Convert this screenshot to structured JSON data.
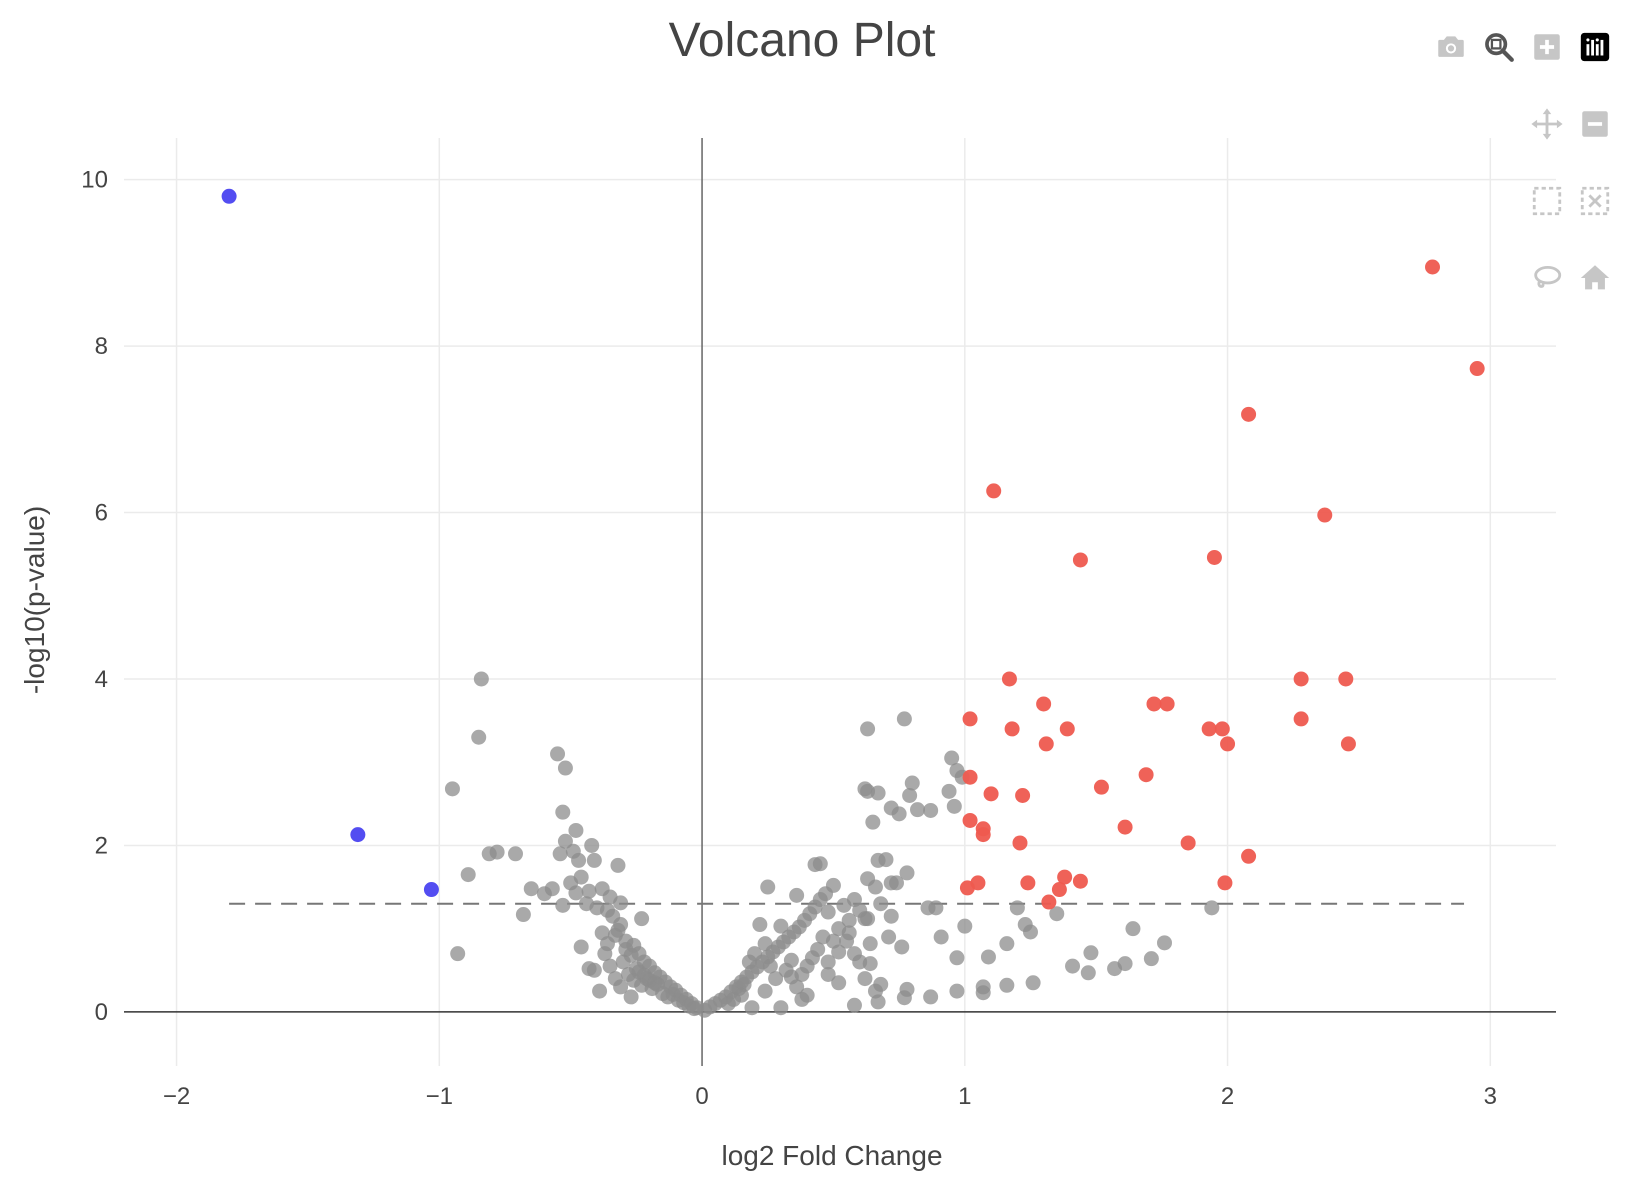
{
  "colors": {
    "up": "#ee5a4f",
    "down": "#4a43f0",
    "ns": "#8c8c8c",
    "grid": "#ebebeb",
    "text": "#444444",
    "modebar_icon": "#c6c6c6",
    "logo_bg": "#000000"
  },
  "modebar": {
    "buttons": [
      {
        "name": "download-plot-as-png",
        "icon": "camera-icon"
      },
      {
        "name": "zoom",
        "icon": "zoom-icon"
      },
      {
        "name": "zoom-in",
        "icon": "zoom-in-icon"
      },
      {
        "name": "plotly-logo",
        "icon": "plotly-logo-icon"
      },
      {
        "name": "pan",
        "icon": "pan-icon"
      },
      {
        "name": "zoom-out",
        "icon": "zoom-out-icon"
      },
      {
        "name": "box-select",
        "icon": "box-select-icon"
      },
      {
        "name": "autoscale",
        "icon": "autoscale-icon"
      },
      {
        "name": "lasso-select",
        "icon": "lasso-icon"
      },
      {
        "name": "reset-axes",
        "icon": "home-icon"
      }
    ]
  },
  "chart_data": {
    "type": "scatter",
    "title": "Volcano Plot",
    "xlabel": "log2 Fold Change",
    "ylabel": "-log10(p-value)",
    "xlim": [
      -2.2,
      3.25
    ],
    "ylim": [
      -0.65,
      10.5
    ],
    "x_ticks": [
      -2,
      -1,
      0,
      1,
      2,
      3
    ],
    "x_tick_labels": [
      "−2",
      "−1",
      "0",
      "1",
      "2",
      "3"
    ],
    "y_ticks": [
      0,
      2,
      4,
      6,
      8,
      10
    ],
    "y_tick_labels": [
      "0",
      "2",
      "4",
      "6",
      "8",
      "10"
    ],
    "grid": true,
    "legend": "none",
    "threshold_line": {
      "y": 1.3,
      "x_range": [
        -1.8,
        2.9
      ],
      "style": "dashed"
    },
    "series": [
      {
        "color": "#4a43f0",
        "points": [
          [
            -1.8,
            9.8
          ],
          [
            -1.31,
            2.13
          ],
          [
            -1.03,
            1.47
          ]
        ]
      },
      {
        "color": "#ee5a4f",
        "points": [
          [
            2.78,
            8.95
          ],
          [
            2.95,
            7.73
          ],
          [
            2.08,
            7.18
          ],
          [
            1.11,
            6.26
          ],
          [
            2.37,
            5.97
          ],
          [
            1.44,
            5.43
          ],
          [
            1.95,
            5.46
          ],
          [
            1.17,
            4.0
          ],
          [
            2.28,
            4.0
          ],
          [
            2.45,
            4.0
          ],
          [
            1.02,
            3.52
          ],
          [
            1.3,
            3.7
          ],
          [
            1.72,
            3.7
          ],
          [
            1.77,
            3.7
          ],
          [
            1.18,
            3.4
          ],
          [
            1.39,
            3.4
          ],
          [
            1.93,
            3.4
          ],
          [
            1.98,
            3.4
          ],
          [
            2.28,
            3.52
          ],
          [
            1.31,
            3.22
          ],
          [
            2.0,
            3.22
          ],
          [
            2.46,
            3.22
          ],
          [
            1.02,
            2.82
          ],
          [
            1.69,
            2.85
          ],
          [
            1.52,
            2.7
          ],
          [
            1.1,
            2.62
          ],
          [
            1.22,
            2.6
          ],
          [
            1.02,
            2.3
          ],
          [
            1.07,
            2.2
          ],
          [
            1.07,
            2.13
          ],
          [
            1.61,
            2.22
          ],
          [
            1.21,
            2.03
          ],
          [
            1.85,
            2.03
          ],
          [
            2.08,
            1.87
          ],
          [
            1.05,
            1.55
          ],
          [
            1.01,
            1.49
          ],
          [
            1.24,
            1.55
          ],
          [
            1.38,
            1.62
          ],
          [
            1.44,
            1.57
          ],
          [
            1.36,
            1.47
          ],
          [
            1.32,
            1.32
          ],
          [
            1.99,
            1.55
          ]
        ]
      },
      {
        "color": "#8c8c8c",
        "points": [
          [
            -0.84,
            4.0
          ],
          [
            -0.85,
            3.3
          ],
          [
            -0.95,
            2.68
          ],
          [
            -0.89,
            1.65
          ],
          [
            -0.93,
            0.7
          ],
          [
            -0.81,
            1.9
          ],
          [
            -0.78,
            1.92
          ],
          [
            -0.71,
            1.9
          ],
          [
            -0.65,
            1.48
          ],
          [
            -0.6,
            1.42
          ],
          [
            -0.57,
            1.48
          ],
          [
            -0.68,
            1.17
          ],
          [
            -0.55,
            3.1
          ],
          [
            -0.52,
            2.93
          ],
          [
            -0.53,
            2.4
          ],
          [
            -0.48,
            2.18
          ],
          [
            -0.52,
            2.05
          ],
          [
            -0.42,
            2.0
          ],
          [
            -0.49,
            1.93
          ],
          [
            -0.54,
            1.9
          ],
          [
            -0.47,
            1.82
          ],
          [
            -0.41,
            1.82
          ],
          [
            -0.32,
            1.76
          ],
          [
            -0.5,
            1.55
          ],
          [
            -0.46,
            1.62
          ],
          [
            -0.43,
            1.45
          ],
          [
            -0.38,
            1.48
          ],
          [
            -0.35,
            1.38
          ],
          [
            -0.48,
            1.43
          ],
          [
            -0.53,
            1.28
          ],
          [
            -0.44,
            1.3
          ],
          [
            -0.4,
            1.25
          ],
          [
            -0.36,
            1.22
          ],
          [
            -0.31,
            1.31
          ],
          [
            -0.23,
            1.12
          ],
          [
            -0.46,
            0.78
          ],
          [
            -0.43,
            0.52
          ],
          [
            -0.41,
            0.5
          ],
          [
            -0.37,
            0.7
          ],
          [
            -0.35,
            0.55
          ],
          [
            -0.39,
            0.25
          ],
          [
            -0.27,
            0.18
          ],
          [
            -0.31,
            1.05
          ],
          [
            -0.33,
            0.92
          ],
          [
            -0.29,
            0.85
          ],
          [
            -0.26,
            0.8
          ],
          [
            -0.24,
            0.7
          ],
          [
            -0.22,
            0.6
          ],
          [
            -0.2,
            0.55
          ],
          [
            -0.18,
            0.47
          ],
          [
            -0.16,
            0.42
          ],
          [
            -0.14,
            0.36
          ],
          [
            -0.12,
            0.3
          ],
          [
            -0.1,
            0.26
          ],
          [
            -0.08,
            0.2
          ],
          [
            -0.06,
            0.15
          ],
          [
            -0.04,
            0.1
          ],
          [
            -0.02,
            0.05
          ],
          [
            -0.3,
            0.6
          ],
          [
            -0.28,
            0.45
          ],
          [
            -0.26,
            0.38
          ],
          [
            -0.25,
            0.52
          ],
          [
            -0.23,
            0.32
          ],
          [
            -0.21,
            0.4
          ],
          [
            -0.19,
            0.28
          ],
          [
            -0.17,
            0.33
          ],
          [
            -0.15,
            0.22
          ],
          [
            -0.13,
            0.18
          ],
          [
            -0.11,
            0.21
          ],
          [
            -0.09,
            0.14
          ],
          [
            -0.07,
            0.11
          ],
          [
            -0.05,
            0.07
          ],
          [
            -0.03,
            0.04
          ],
          [
            -0.32,
            0.98
          ],
          [
            -0.34,
            1.15
          ],
          [
            -0.36,
            0.82
          ],
          [
            -0.38,
            0.95
          ],
          [
            -0.27,
            0.68
          ],
          [
            -0.29,
            0.75
          ],
          [
            -0.24,
            0.48
          ],
          [
            -0.22,
            0.44
          ],
          [
            -0.2,
            0.38
          ],
          [
            -0.18,
            0.35
          ],
          [
            -0.33,
            0.4
          ],
          [
            -0.31,
            0.3
          ],
          [
            0.01,
            0.02
          ],
          [
            0.03,
            0.06
          ],
          [
            0.05,
            0.1
          ],
          [
            0.07,
            0.14
          ],
          [
            0.09,
            0.18
          ],
          [
            0.11,
            0.24
          ],
          [
            0.13,
            0.3
          ],
          [
            0.15,
            0.36
          ],
          [
            0.17,
            0.42
          ],
          [
            0.19,
            0.48
          ],
          [
            0.21,
            0.54
          ],
          [
            0.23,
            0.6
          ],
          [
            0.25,
            0.66
          ],
          [
            0.27,
            0.72
          ],
          [
            0.29,
            0.78
          ],
          [
            0.31,
            0.84
          ],
          [
            0.33,
            0.9
          ],
          [
            0.35,
            0.96
          ],
          [
            0.37,
            1.02
          ],
          [
            0.39,
            1.1
          ],
          [
            0.41,
            1.18
          ],
          [
            0.43,
            1.26
          ],
          [
            0.45,
            1.35
          ],
          [
            0.47,
            1.42
          ],
          [
            0.45,
            1.78
          ],
          [
            0.43,
            1.77
          ],
          [
            0.5,
            1.52
          ],
          [
            0.36,
            1.4
          ],
          [
            0.25,
            1.5
          ],
          [
            0.3,
            1.03
          ],
          [
            0.22,
            1.05
          ],
          [
            0.18,
            0.6
          ],
          [
            0.2,
            0.7
          ],
          [
            0.24,
            0.82
          ],
          [
            0.26,
            0.55
          ],
          [
            0.28,
            0.4
          ],
          [
            0.32,
            0.5
          ],
          [
            0.34,
            0.62
          ],
          [
            0.36,
            0.3
          ],
          [
            0.38,
            0.45
          ],
          [
            0.4,
            0.55
          ],
          [
            0.42,
            0.65
          ],
          [
            0.44,
            0.75
          ],
          [
            0.46,
            0.9
          ],
          [
            0.48,
            0.6
          ],
          [
            0.5,
            0.85
          ],
          [
            0.52,
            0.72
          ],
          [
            0.54,
            1.28
          ],
          [
            0.56,
            1.1
          ],
          [
            0.58,
            1.35
          ],
          [
            0.6,
            1.22
          ],
          [
            0.62,
            1.12
          ],
          [
            0.64,
            0.82
          ],
          [
            0.66,
            1.5
          ],
          [
            0.6,
            0.6
          ],
          [
            0.62,
            0.4
          ],
          [
            0.58,
            0.7
          ],
          [
            0.55,
            0.85
          ],
          [
            0.63,
            3.4
          ],
          [
            0.77,
            3.52
          ],
          [
            0.62,
            2.68
          ],
          [
            0.63,
            2.65
          ],
          [
            0.67,
            2.63
          ],
          [
            0.8,
            2.75
          ],
          [
            0.79,
            2.6
          ],
          [
            0.72,
            2.45
          ],
          [
            0.75,
            2.38
          ],
          [
            0.82,
            2.43
          ],
          [
            0.87,
            2.42
          ],
          [
            0.65,
            2.28
          ],
          [
            0.63,
            1.6
          ],
          [
            0.67,
            1.82
          ],
          [
            0.7,
            1.83
          ],
          [
            0.72,
            1.55
          ],
          [
            0.74,
            1.55
          ],
          [
            0.78,
            1.67
          ],
          [
            0.68,
            1.3
          ],
          [
            0.72,
            1.15
          ],
          [
            0.86,
            1.25
          ],
          [
            0.89,
            1.25
          ],
          [
            0.95,
            3.05
          ],
          [
            0.94,
            2.65
          ],
          [
            0.97,
            2.9
          ],
          [
            0.99,
            2.82
          ],
          [
            0.96,
            2.47
          ],
          [
            0.63,
            1.12
          ],
          [
            0.71,
            0.9
          ],
          [
            0.76,
            0.78
          ],
          [
            0.64,
            0.58
          ],
          [
            0.68,
            0.33
          ],
          [
            0.66,
            0.25
          ],
          [
            0.67,
            0.12
          ],
          [
            0.58,
            0.08
          ],
          [
            0.77,
            0.17
          ],
          [
            0.78,
            0.27
          ],
          [
            0.87,
            0.18
          ],
          [
            0.97,
            0.25
          ],
          [
            1.07,
            0.23
          ],
          [
            1.07,
            0.3
          ],
          [
            1.16,
            0.32
          ],
          [
            1.26,
            0.35
          ],
          [
            0.91,
            0.9
          ],
          [
            0.97,
            0.65
          ],
          [
            1.0,
            1.03
          ],
          [
            1.09,
            0.66
          ],
          [
            1.16,
            0.82
          ],
          [
            1.23,
            1.05
          ],
          [
            1.25,
            0.96
          ],
          [
            1.2,
            1.25
          ],
          [
            1.35,
            1.18
          ],
          [
            1.41,
            0.55
          ],
          [
            1.47,
            0.47
          ],
          [
            1.48,
            0.71
          ],
          [
            1.57,
            0.52
          ],
          [
            1.61,
            0.58
          ],
          [
            1.64,
            1.0
          ],
          [
            1.71,
            0.64
          ],
          [
            1.76,
            0.83
          ],
          [
            1.94,
            1.25
          ],
          [
            0.48,
            0.45
          ],
          [
            0.52,
            0.35
          ],
          [
            0.38,
            0.15
          ],
          [
            0.3,
            0.05
          ],
          [
            0.19,
            0.05
          ],
          [
            0.24,
            0.25
          ],
          [
            0.15,
            0.2
          ],
          [
            0.12,
            0.15
          ],
          [
            0.1,
            0.1
          ],
          [
            0.14,
            0.28
          ],
          [
            0.16,
            0.33
          ],
          [
            0.34,
            0.42
          ],
          [
            0.4,
            0.2
          ],
          [
            0.56,
            0.95
          ],
          [
            0.52,
            1.0
          ],
          [
            0.48,
            1.2
          ]
        ]
      }
    ]
  }
}
